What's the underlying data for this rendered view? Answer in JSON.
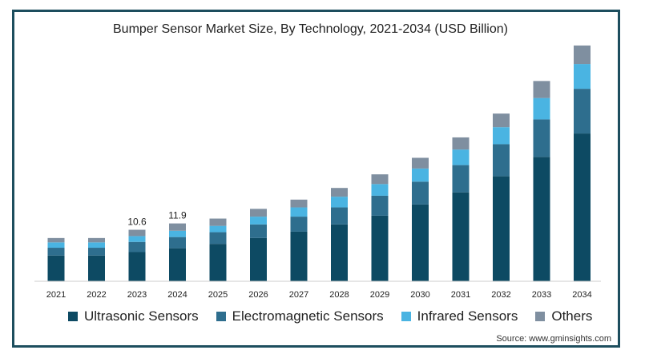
{
  "chart_data": {
    "type": "bar",
    "stacked": true,
    "title": "Bumper Sensor Market Size, By Technology, 2021-2034 (USD Billion)",
    "categories": [
      "2021",
      "2022",
      "2023",
      "2024",
      "2025",
      "2026",
      "2027",
      "2028",
      "2029",
      "2030",
      "2031",
      "2032",
      "2033",
      "2034"
    ],
    "series": [
      {
        "name": "Ultrasonic Sensors",
        "color": "#0d4a63",
        "values": [
          5.3,
          5.3,
          6.0,
          6.8,
          7.7,
          8.9,
          10.2,
          11.7,
          13.5,
          15.8,
          18.3,
          21.6,
          25.6,
          30.4
        ]
      },
      {
        "name": "Electromagnetic Sensors",
        "color": "#2e6e8e",
        "values": [
          1.6,
          1.6,
          2.1,
          2.3,
          2.4,
          2.8,
          3.1,
          3.5,
          4.1,
          4.7,
          5.6,
          6.6,
          7.7,
          9.2
        ]
      },
      {
        "name": "Infrared Sensors",
        "color": "#4ab4e2",
        "values": [
          1.1,
          1.1,
          1.2,
          1.3,
          1.3,
          1.6,
          1.9,
          2.2,
          2.4,
          2.7,
          3.2,
          3.5,
          4.4,
          5.1
        ]
      },
      {
        "name": "Others",
        "color": "#7f8fa0",
        "values": [
          0.9,
          0.9,
          1.3,
          1.5,
          1.5,
          1.6,
          1.6,
          1.8,
          2.0,
          2.2,
          2.5,
          2.8,
          3.5,
          3.8
        ]
      }
    ],
    "data_labels": {
      "2023": "10.6",
      "2024": "11.9"
    },
    "ylim": [
      0,
      48
    ],
    "legend_position": "bottom",
    "grid": false
  },
  "source": "Source: www.gminsights.com"
}
